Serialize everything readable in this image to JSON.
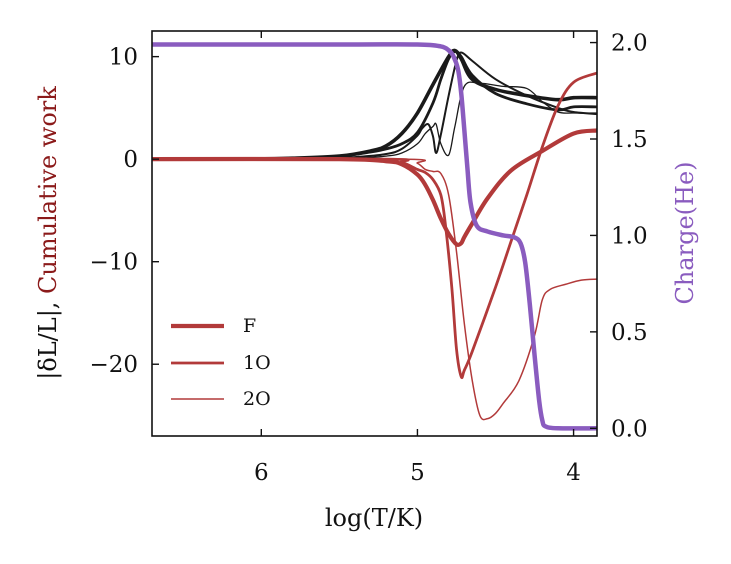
{
  "chart_data": {
    "type": "line",
    "xlabel": "log(T/K)",
    "ylabel_left_parts": [
      "|δL/L|",
      ", ",
      "Cumulative work"
    ],
    "ylabel_right": "Charge(He)",
    "xlim": [
      6.7,
      3.85
    ],
    "ylim_left": [
      -27,
      12.5
    ],
    "ylim_right": [
      -0.04,
      2.06
    ],
    "x_ticks": [
      6,
      5,
      4
    ],
    "x_tick_labels": [
      "6",
      "5",
      "4"
    ],
    "y_left_ticks": [
      10,
      0,
      -10,
      -20
    ],
    "y_left_tick_labels": [
      "10",
      "0",
      "−10",
      "−20"
    ],
    "y_right_ticks": [
      2.0,
      1.5,
      1.0,
      0.5,
      0.0
    ],
    "y_right_tick_labels": [
      "2.0",
      "1.5",
      "1.0",
      "0.5",
      "0.0"
    ],
    "colors": {
      "delta_l": "#1a1a1a",
      "work": "#b23a3a",
      "charge": "#8a5cbf",
      "work_label": "#8b1a1a"
    },
    "series": [
      {
        "name": "|δL/L| F",
        "axis": "left",
        "kind": "delta_l",
        "width": 3.6,
        "x": [
          6.7,
          6.2,
          5.8,
          5.5,
          5.3,
          5.2,
          5.1,
          5.0,
          4.9,
          4.8,
          4.76,
          4.72,
          4.65,
          4.5,
          4.3,
          4.1,
          4.0,
          3.85
        ],
        "y": [
          0,
          0,
          0.1,
          0.3,
          0.8,
          1.3,
          2.5,
          4.5,
          7.3,
          10.0,
          10.6,
          9.8,
          7.8,
          6.8,
          6.2,
          5.8,
          6.0,
          6.0
        ]
      },
      {
        "name": "|δL/L| 1O",
        "axis": "left",
        "kind": "delta_l",
        "width": 2.8,
        "x": [
          6.7,
          6.2,
          5.8,
          5.5,
          5.3,
          5.2,
          5.1,
          5.0,
          4.9,
          4.85,
          4.8,
          4.76,
          4.72,
          4.65,
          4.5,
          4.3,
          4.1,
          4.0,
          3.85
        ],
        "y": [
          0,
          0,
          0.1,
          0.3,
          0.7,
          1.0,
          1.5,
          2.6,
          5.5,
          7.8,
          9.8,
          10.5,
          10.0,
          8.2,
          6.4,
          5.4,
          4.8,
          5.1,
          5.1
        ]
      },
      {
        "name": "|δL/L| 2O",
        "axis": "left",
        "kind": "delta_l",
        "width": 2.0,
        "x": [
          6.7,
          6.0,
          5.6,
          5.4,
          5.2,
          5.1,
          5.0,
          4.97,
          4.93,
          4.9,
          4.88,
          4.85,
          4.8,
          4.75,
          4.72,
          4.65,
          4.5,
          4.3,
          4.1,
          4.0,
          3.85
        ],
        "y": [
          0,
          0,
          0.1,
          0.2,
          0.5,
          1.0,
          2.3,
          3.0,
          3.4,
          2.2,
          0.6,
          2.4,
          6.2,
          9.6,
          10.4,
          9.6,
          7.8,
          6.2,
          5.0,
          4.6,
          4.4
        ]
      },
      {
        "name": "|δL/L| 2O detail",
        "axis": "left",
        "kind": "delta_l",
        "width": 1.3,
        "x": [
          6.7,
          6.0,
          5.4,
          5.2,
          5.1,
          5.0,
          4.95,
          4.9,
          4.88,
          4.85,
          4.8,
          4.76,
          4.7,
          4.6,
          4.45,
          4.3,
          4.2,
          4.1,
          4.0,
          3.85
        ],
        "y": [
          0,
          0,
          0.1,
          0.3,
          0.6,
          1.5,
          2.5,
          3.2,
          3.4,
          1.5,
          0.4,
          3.2,
          7.1,
          7.4,
          7.1,
          6.9,
          5.6,
          4.6,
          4.5,
          4.5
        ]
      },
      {
        "name": "F",
        "axis": "left",
        "kind": "work",
        "width": 4.2,
        "legend": true,
        "x": [
          6.7,
          5.5,
          5.2,
          5.1,
          5.0,
          4.95,
          4.9,
          4.85,
          4.8,
          4.75,
          4.72,
          4.7,
          4.65,
          4.55,
          4.4,
          4.2,
          4.0,
          3.85
        ],
        "y": [
          0,
          0,
          -0.2,
          -0.5,
          -1.5,
          -2.5,
          -4.0,
          -5.8,
          -7.3,
          -8.3,
          -8.2,
          -7.6,
          -6.3,
          -3.8,
          -1.1,
          0.8,
          2.5,
          2.8
        ]
      },
      {
        "name": "1O",
        "axis": "left",
        "kind": "work",
        "width": 2.8,
        "legend": true,
        "x": [
          6.7,
          5.2,
          5.1,
          5.0,
          4.95,
          4.9,
          4.85,
          4.82,
          4.78,
          4.75,
          4.72,
          4.7,
          4.65,
          4.5,
          4.4,
          4.3,
          4.2,
          4.1,
          4.0,
          3.85
        ],
        "y": [
          0,
          0,
          -0.3,
          -1.0,
          -1.3,
          -2.0,
          -3.5,
          -6.5,
          -12.5,
          -18.5,
          -21.2,
          -20.6,
          -18.8,
          -12.5,
          -8.0,
          -3.5,
          1.2,
          5.2,
          7.5,
          8.4
        ]
      },
      {
        "name": "2O",
        "axis": "left",
        "kind": "work",
        "width": 1.5,
        "legend": true,
        "x": [
          6.7,
          5.1,
          5.0,
          4.95,
          4.9,
          4.85,
          4.8,
          4.75,
          4.7,
          4.65,
          4.6,
          4.55,
          4.5,
          4.45,
          4.35,
          4.25,
          4.2,
          4.15,
          4.05,
          3.95,
          3.85
        ],
        "y": [
          0,
          0,
          -0.4,
          -1.0,
          -1.2,
          -1.4,
          -3.5,
          -9.0,
          -16.0,
          -21.5,
          -25.0,
          -25.3,
          -24.8,
          -23.8,
          -21.6,
          -17.2,
          -13.7,
          -12.7,
          -12.2,
          -11.8,
          -11.7
        ]
      },
      {
        "name": "Charge(He)",
        "axis": "right",
        "kind": "charge",
        "width": 4.5,
        "x": [
          6.7,
          5.5,
          5.0,
          4.85,
          4.8,
          4.77,
          4.74,
          4.72,
          4.7,
          4.68,
          4.66,
          4.62,
          4.55,
          4.45,
          4.38,
          4.34,
          4.31,
          4.28,
          4.25,
          4.22,
          4.2,
          4.18,
          4.1,
          3.85
        ],
        "y": [
          1.99,
          1.99,
          1.99,
          1.98,
          1.96,
          1.93,
          1.86,
          1.74,
          1.55,
          1.35,
          1.17,
          1.05,
          1.02,
          1.0,
          0.99,
          0.96,
          0.86,
          0.64,
          0.38,
          0.14,
          0.04,
          0.01,
          0.0,
          0.0
        ]
      }
    ]
  }
}
